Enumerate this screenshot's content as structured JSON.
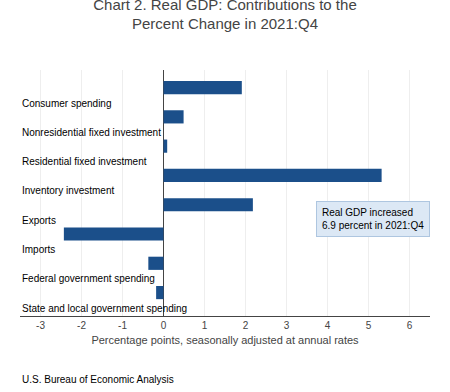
{
  "chart_data": {
    "type": "bar",
    "orientation": "horizontal",
    "title": "Chart 2. Real GDP: Contributions to the\nPercent Change in 2021:Q4",
    "categories": [
      "Consumer spending",
      "Nonresidential fixed investment",
      "Residential fixed investment",
      "Inventory investment",
      "Exports",
      "Imports",
      "Federal government spending",
      "State and local government spending"
    ],
    "values": [
      1.91,
      0.49,
      0.09,
      5.32,
      2.18,
      -2.43,
      -0.37,
      -0.18
    ],
    "color": "#1b4f8a",
    "xlabel": "Percentage points, seasonally adjusted at annual rates",
    "xlim": [
      -3.5,
      6.5
    ],
    "xticks": [
      -3,
      -2,
      -1,
      0,
      1,
      2,
      3,
      4,
      5,
      6
    ],
    "grid": true,
    "tick_labels": "x",
    "annotation": "Real GDP increased\n6.9 percent in 2021:Q4",
    "footer": "U.S. Bureau of Economic Analysis"
  }
}
